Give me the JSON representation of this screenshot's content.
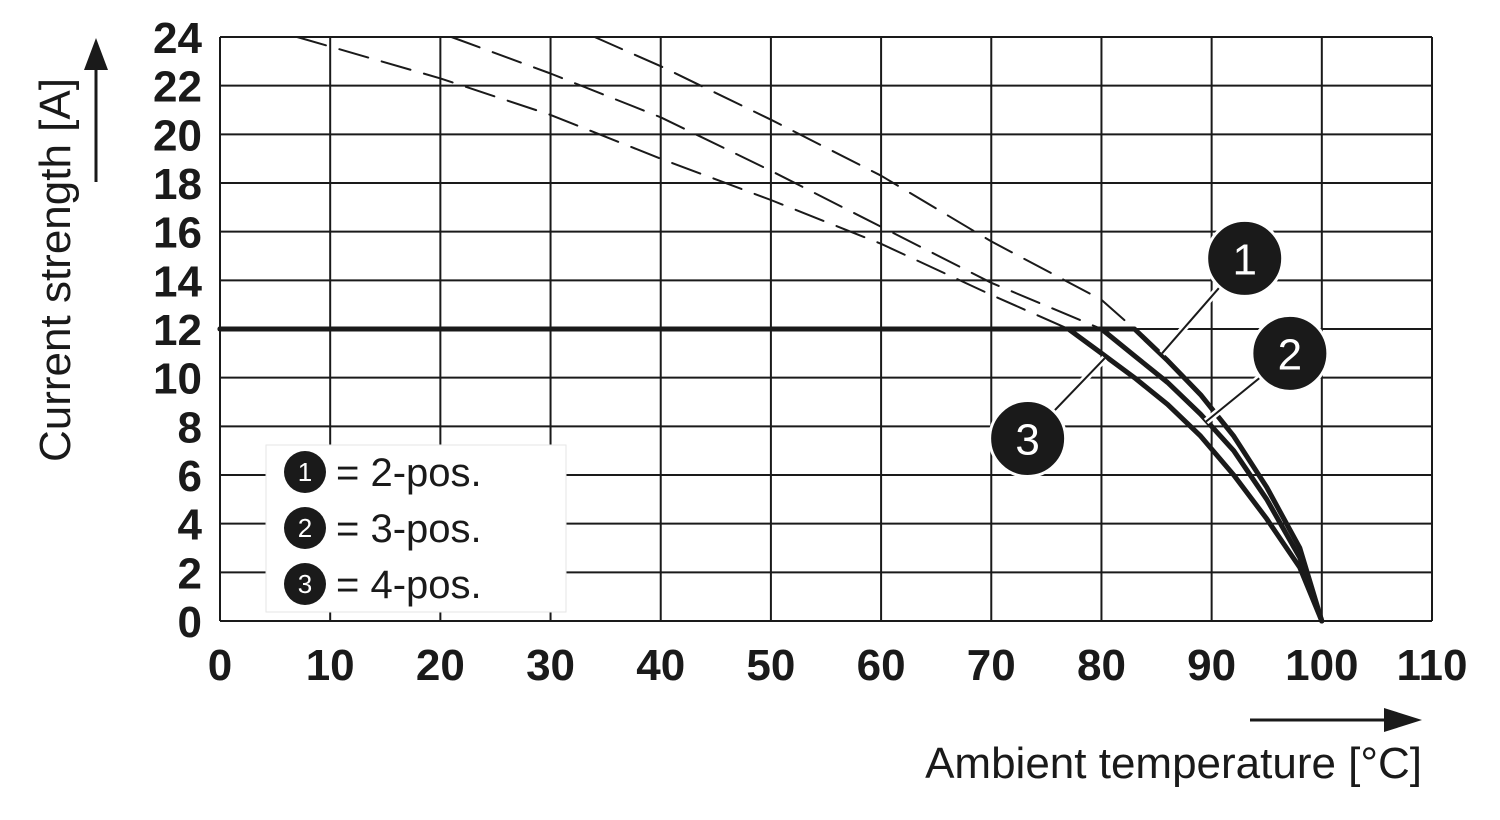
{
  "chart_data": {
    "type": "line",
    "xlabel": "Ambient temperature [°C]",
    "ylabel": "Current strength [A]",
    "xlim": [
      0,
      110
    ],
    "ylim": [
      0,
      24
    ],
    "x_ticks": [
      0,
      10,
      20,
      30,
      40,
      50,
      60,
      70,
      80,
      90,
      100,
      110
    ],
    "y_ticks": [
      0,
      2,
      4,
      6,
      8,
      10,
      12,
      14,
      16,
      18,
      20,
      22,
      24
    ],
    "grid": true,
    "legend_position": "bottom-left",
    "legend": [
      {
        "marker": "1",
        "label": "= 2-pos."
      },
      {
        "marker": "2",
        "label": "= 3-pos."
      },
      {
        "marker": "3",
        "label": "= 4-pos."
      }
    ],
    "series": [
      {
        "marker": "1",
        "style": "solid",
        "x": [
          0,
          83,
          86,
          89,
          92,
          95,
          98,
          100
        ],
        "y": [
          12,
          12,
          10.7,
          9.3,
          7.6,
          5.5,
          3.0,
          0
        ]
      },
      {
        "marker": "2",
        "style": "solid",
        "x": [
          0,
          80,
          83,
          86,
          89,
          92,
          95,
          98,
          100
        ],
        "y": [
          12,
          12,
          10.9,
          9.8,
          8.5,
          7.0,
          5.0,
          2.6,
          0
        ]
      },
      {
        "marker": "3",
        "style": "solid",
        "x": [
          0,
          77,
          80,
          83,
          86,
          89,
          92,
          95,
          98,
          100
        ],
        "y": [
          12,
          12,
          11.0,
          10.0,
          8.9,
          7.6,
          6.0,
          4.2,
          2.2,
          0
        ]
      },
      {
        "marker": "1",
        "style": "dashed",
        "x": [
          34,
          40,
          50,
          60,
          70,
          80,
          83
        ],
        "y": [
          24,
          22.8,
          20.6,
          18.3,
          15.6,
          13.2,
          12
        ]
      },
      {
        "marker": "2",
        "style": "dashed",
        "x": [
          21,
          30,
          40,
          50,
          60,
          70,
          80
        ],
        "y": [
          24,
          22.5,
          20.7,
          18.5,
          16.2,
          13.9,
          12
        ]
      },
      {
        "marker": "3",
        "style": "dashed",
        "x": [
          7,
          20,
          30,
          40,
          50,
          60,
          70,
          77
        ],
        "y": [
          24,
          22.3,
          20.8,
          19.0,
          17.3,
          15.5,
          13.4,
          12
        ]
      }
    ],
    "callouts": [
      {
        "marker": "1",
        "x": 93,
        "y": 14.9,
        "target_x": 85.5,
        "target_y": 11.0
      },
      {
        "marker": "2",
        "x": 97.1,
        "y": 11.0,
        "target_x": 89.5,
        "target_y": 8.2
      },
      {
        "marker": "3",
        "x": 73.3,
        "y": 7.5,
        "target_x": 80.3,
        "target_y": 10.8
      }
    ]
  }
}
